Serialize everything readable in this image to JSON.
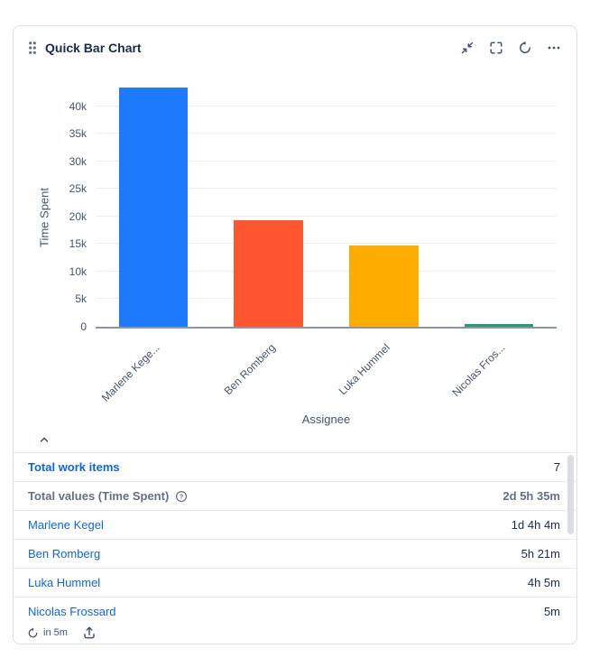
{
  "header": {
    "title": "Quick Bar Chart",
    "actions": [
      {
        "label": "Minimize",
        "icon": "collapse-diagonal-icon"
      },
      {
        "label": "Full screen",
        "icon": "fullscreen-icon"
      },
      {
        "label": "Refresh",
        "icon": "refresh-icon"
      },
      {
        "label": "More",
        "icon": "more-horizontal-icon"
      }
    ]
  },
  "chart_data": {
    "type": "bar",
    "title": "",
    "xlabel": "Assignee",
    "ylabel": "Time Spent",
    "categories": [
      "Marlene Kege...",
      "Ben Romberg",
      "Luka Hummel",
      "Nicolas Fros..."
    ],
    "values": [
      43440,
      19260,
      14700,
      300
    ],
    "colors": [
      "#1D7AFC",
      "#FF5630",
      "#FFAB00",
      "#22A06B"
    ],
    "ylim": [
      0,
      45000
    ],
    "yticks": [
      {
        "label": "0",
        "value": 0
      },
      {
        "label": "5k",
        "value": 5000
      },
      {
        "label": "10k",
        "value": 10000
      },
      {
        "label": "15k",
        "value": 15000
      },
      {
        "label": "20k",
        "value": 20000
      },
      {
        "label": "25k",
        "value": 25000
      },
      {
        "label": "30k",
        "value": 30000
      },
      {
        "label": "35k",
        "value": 35000
      },
      {
        "label": "40k",
        "value": 40000
      }
    ],
    "grid": true,
    "legend": false
  },
  "summary": {
    "rows": [
      {
        "label": "Total work items",
        "value": "7",
        "bold": true,
        "link": true,
        "help": false,
        "value_bold": false
      },
      {
        "label": "Total values (Time Spent)",
        "value": "2d 5h 35m",
        "bold": true,
        "link": false,
        "help": true,
        "value_bold": true
      },
      {
        "label": "Marlene Kegel",
        "value": "1d 4h 4m",
        "bold": false,
        "link": true,
        "help": false,
        "value_bold": false
      },
      {
        "label": "Ben Romberg",
        "value": "5h 21m",
        "bold": false,
        "link": true,
        "help": false,
        "value_bold": false
      },
      {
        "label": "Luka Hummel",
        "value": "4h 5m",
        "bold": false,
        "link": true,
        "help": false,
        "value_bold": false
      },
      {
        "label": "Nicolas Frossard",
        "value": "5m",
        "bold": false,
        "link": true,
        "help": false,
        "value_bold": false
      }
    ]
  },
  "footer": {
    "refresh_label": "in 5m"
  }
}
